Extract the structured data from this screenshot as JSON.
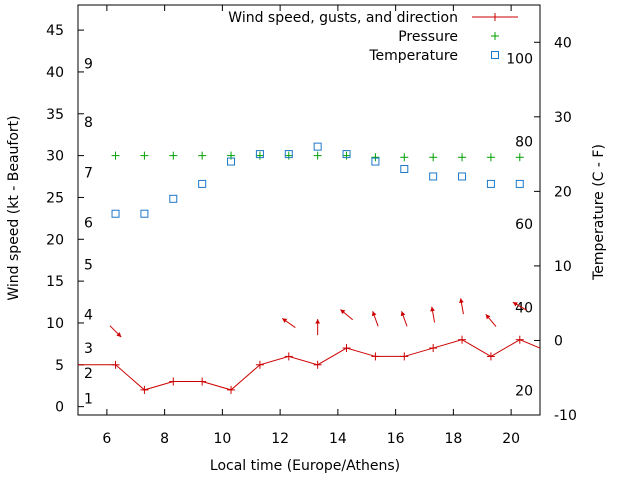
{
  "chart_data": {
    "type": "line",
    "xlabel": "Local time (Europe/Athens)",
    "ylabel": "Wind speed (kt - Beaufort)",
    "y2label": "Temperature (C - F)",
    "xlim": [
      5,
      21
    ],
    "ylim": [
      -1,
      48
    ],
    "y2lim": [
      -10,
      45
    ],
    "grid": false,
    "legend_position": "top-right",
    "x_ticks": [
      "6",
      "8",
      "10",
      "12",
      "14",
      "16",
      "18",
      "20"
    ],
    "y_ticks": [
      "0",
      "5",
      "10",
      "15",
      "20",
      "25",
      "30",
      "35",
      "40",
      "45"
    ],
    "y2_ticks": [
      "-10",
      "0",
      "10",
      "20",
      "30",
      "40"
    ],
    "beaufort_labels": [
      {
        "text": "1",
        "y": 1
      },
      {
        "text": "2",
        "y": 4
      },
      {
        "text": "3",
        "y": 7
      },
      {
        "text": "4",
        "y": 11
      },
      {
        "text": "5",
        "y": 17
      },
      {
        "text": "6",
        "y": 22
      },
      {
        "text": "7",
        "y": 28
      },
      {
        "text": "8",
        "y": 34
      },
      {
        "text": "9",
        "y": 41
      }
    ],
    "fahrenheit_labels": [
      {
        "text": "20",
        "y2": -6.7
      },
      {
        "text": "40",
        "y2": 4.4
      },
      {
        "text": "60",
        "y2": 15.6
      },
      {
        "text": "80",
        "y2": 26.7
      },
      {
        "text": "100",
        "y2": 37.8
      }
    ],
    "series": [
      {
        "name": "Wind speed, gusts, and direction",
        "color": "#cc0000",
        "marker": "plus",
        "x": [
          5,
          6.3,
          7.3,
          8.3,
          9.3,
          10.3,
          11.3,
          12.3,
          13.3,
          14.3,
          15.3,
          16.3,
          17.3,
          18.3,
          19.3,
          20.3,
          21
        ],
        "y": [
          5,
          5,
          2,
          3,
          3,
          2,
          5,
          6,
          5,
          7,
          6,
          6,
          7,
          8,
          6,
          8,
          7
        ]
      },
      {
        "name": "Pressure",
        "color": "#00a000",
        "marker": "plus",
        "axis": "left",
        "x": [
          6.3,
          7.3,
          8.3,
          9.3,
          10.3,
          11.3,
          12.3,
          13.3,
          14.3,
          15.3,
          16.3,
          17.3,
          18.3,
          19.3,
          20.3
        ],
        "y": [
          30,
          30,
          30,
          30,
          30,
          30,
          30,
          30,
          30,
          29.8,
          29.8,
          29.8,
          29.8,
          29.8,
          29.8
        ]
      },
      {
        "name": "Temperature",
        "color": "#1e78c8",
        "marker": "square",
        "axis": "right",
        "x": [
          6.3,
          7.3,
          8.3,
          9.3,
          10.3,
          11.3,
          12.3,
          13.3,
          14.3,
          15.3,
          16.3,
          17.3,
          18.3,
          19.3,
          20.3
        ],
        "y": [
          17,
          17,
          19,
          21,
          24,
          25,
          25,
          26,
          25,
          24,
          23,
          22,
          22,
          21,
          21
        ]
      }
    ],
    "wind_direction_arrows": {
      "color": "#cc0000",
      "x": [
        6.3,
        12.3,
        13.3,
        14.3,
        15.3,
        16.3,
        17.3,
        18.3,
        19.3,
        20.3
      ],
      "y": [
        9,
        10,
        9.5,
        11,
        10.5,
        10.5,
        11,
        12,
        10.3,
        12
      ],
      "angle_deg": [
        45,
        215,
        270,
        220,
        250,
        250,
        260,
        260,
        230,
        210
      ]
    }
  }
}
